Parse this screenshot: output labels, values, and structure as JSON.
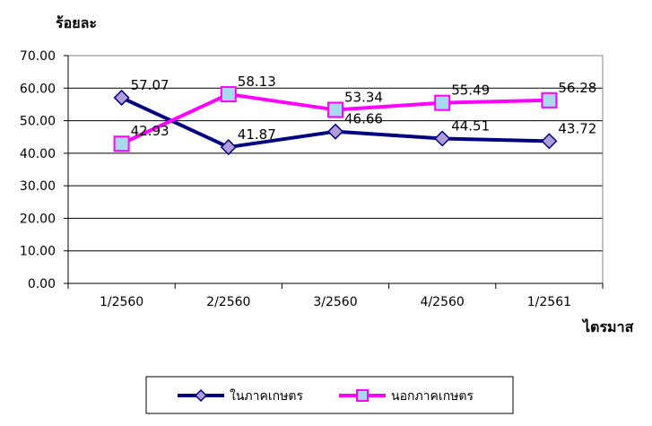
{
  "chart_data": {
    "type": "line",
    "ylabel": "ร้อยละ",
    "xlabel": "ไตรมาส",
    "categories": [
      "1/2560",
      "2/2560",
      "3/2560",
      "4/2560",
      "1/2561"
    ],
    "ylim": [
      0,
      70
    ],
    "yticks": [
      "0.00",
      "10.00",
      "20.00",
      "30.00",
      "40.00",
      "50.00",
      "60.00",
      "70.00"
    ],
    "grid": "horizontal",
    "legend_position": "bottom",
    "series": [
      {
        "name": "ในภาคเกษตร",
        "values": [
          57.07,
          41.87,
          46.66,
          44.51,
          43.72
        ],
        "labels": [
          "57.07",
          "41.87",
          "46.66",
          "44.51",
          "43.72"
        ],
        "color": "#000080",
        "marker_fill": "#B19CD9",
        "marker": "diamond"
      },
      {
        "name": "นอกภาคเกษตร",
        "values": [
          42.93,
          58.13,
          53.34,
          55.49,
          56.28
        ],
        "labels": [
          "42.93",
          "58.13",
          "53.34",
          "55.49",
          "56.28"
        ],
        "color": "#FF00FF",
        "marker_fill": "#A9D8F0",
        "marker": "square"
      }
    ]
  }
}
